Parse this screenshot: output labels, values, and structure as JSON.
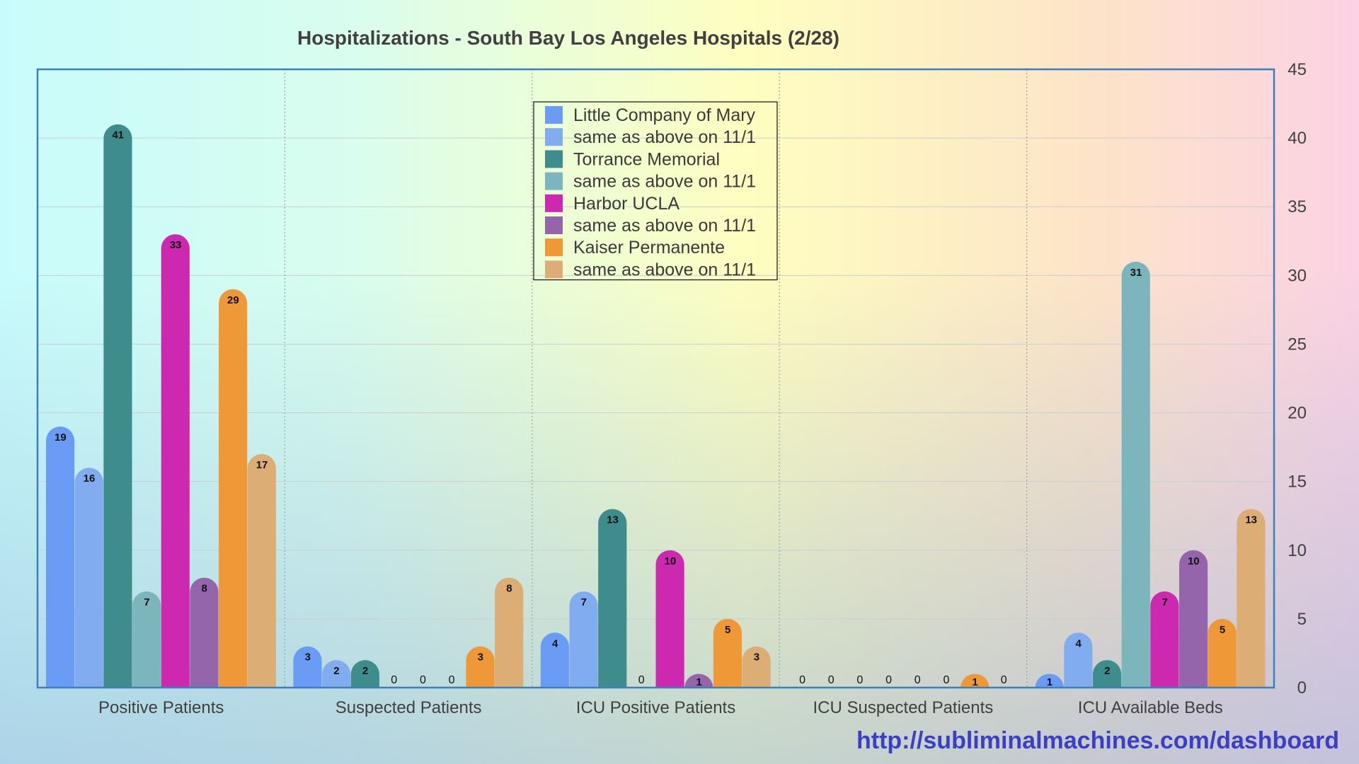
{
  "chart_data": {
    "type": "bar",
    "title": "Hospitalizations - South Bay Los Angeles Hospitals (2/28)",
    "xlabel": "",
    "ylabel": "",
    "ylim": [
      0,
      45
    ],
    "y_ticks": [
      0,
      5,
      10,
      15,
      20,
      25,
      30,
      35,
      40,
      45
    ],
    "y_axis_side": "right",
    "grid": true,
    "legend_position": "top-center",
    "categories": [
      "Positive Patients",
      "Suspected Patients",
      "ICU Positive Patients",
      "ICU Suspected Patients",
      "ICU Available Beds"
    ],
    "series": [
      {
        "name": "Little Company of Mary",
        "color": "#6a9cf6",
        "values": [
          19,
          3,
          4,
          0,
          1
        ]
      },
      {
        "name": "same as above on 11/1",
        "color": "#82acf0",
        "values": [
          16,
          2,
          7,
          0,
          4
        ]
      },
      {
        "name": "Torrance Memorial",
        "color": "#3f8c8c",
        "values": [
          41,
          2,
          13,
          0,
          2
        ]
      },
      {
        "name": "same as above on 11/1",
        "color": "#7cb6bc",
        "values": [
          7,
          0,
          0,
          0,
          31
        ]
      },
      {
        "name": "Harbor UCLA",
        "color": "#cc28b0",
        "values": [
          33,
          0,
          10,
          0,
          7
        ]
      },
      {
        "name": "same as above on 11/1",
        "color": "#9565ab",
        "values": [
          8,
          0,
          1,
          0,
          10
        ]
      },
      {
        "name": "Kaiser Permanente",
        "color": "#ef9837",
        "values": [
          29,
          3,
          5,
          1,
          5
        ]
      },
      {
        "name": "same as above on 11/1",
        "color": "#dcae76",
        "values": [
          17,
          8,
          3,
          0,
          13
        ]
      }
    ]
  },
  "footer": {
    "url": "http://subliminalmachines.com/dashboard"
  }
}
